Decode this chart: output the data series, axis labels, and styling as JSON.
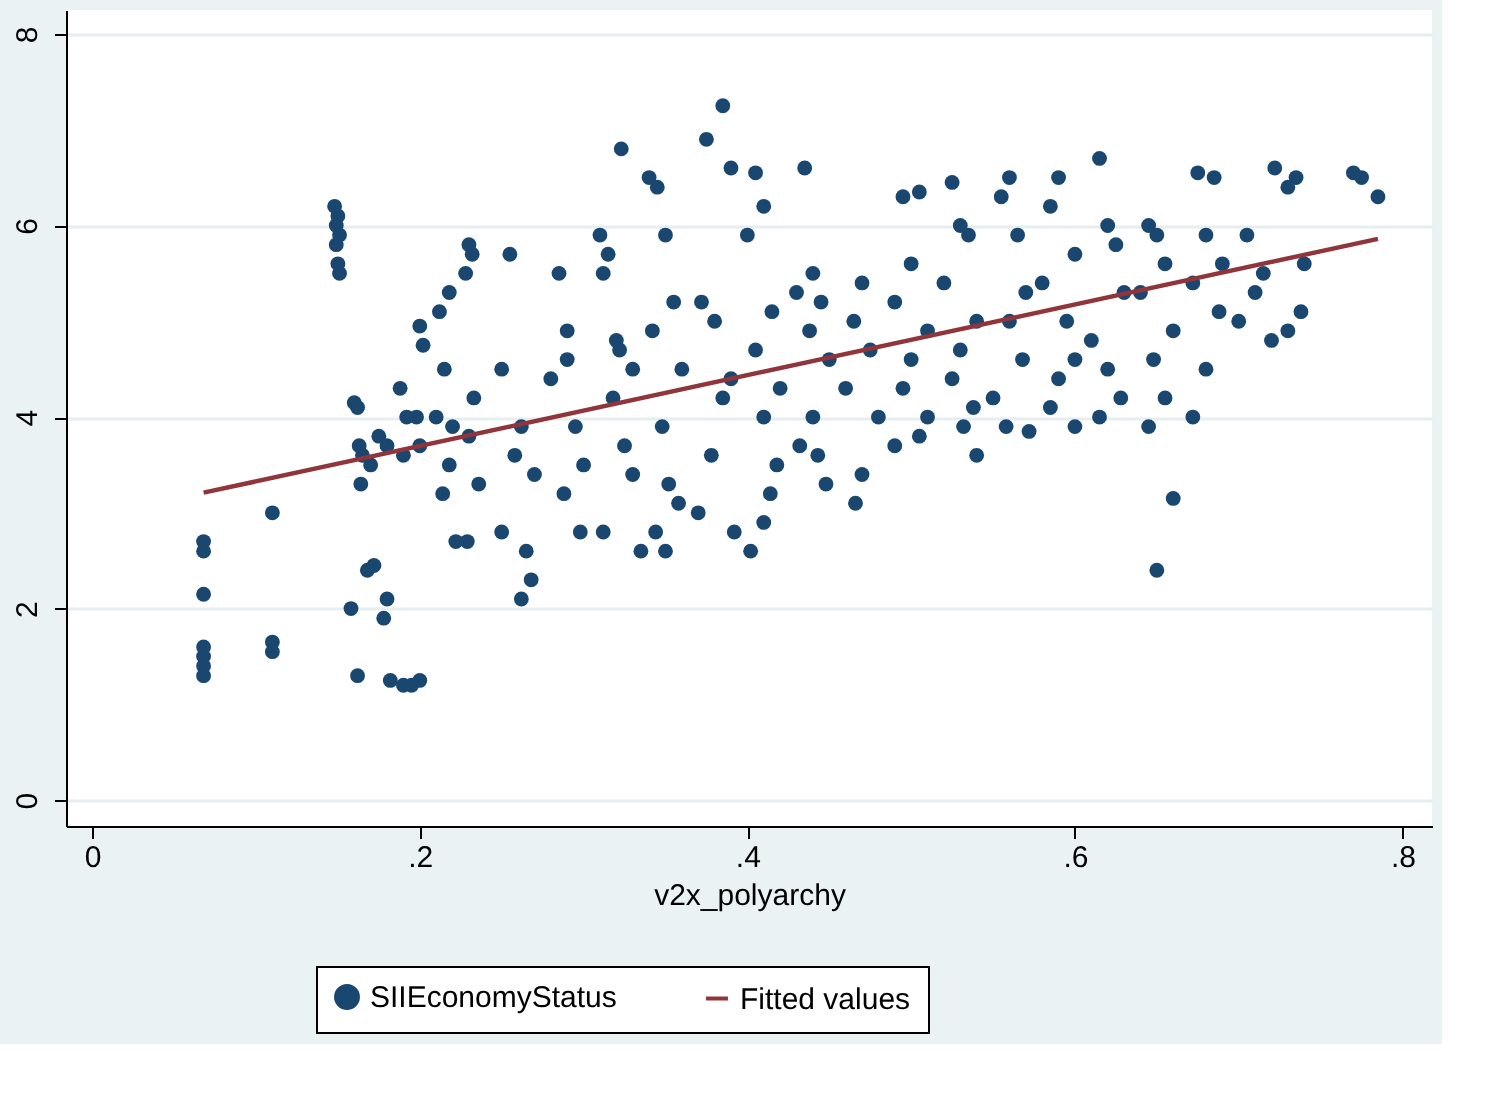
{
  "chart_data": {
    "type": "scatter",
    "xlabel": "v2x_polyarchy",
    "xlim": [
      -0.016,
      0.818
    ],
    "ylim": [
      -0.27,
      8.25
    ],
    "xticks": [
      {
        "value": 0,
        "label": "0"
      },
      {
        "value": 0.2,
        "label": ".2"
      },
      {
        "value": 0.4,
        "label": ".4"
      },
      {
        "value": 0.6,
        "label": ".6"
      },
      {
        "value": 0.8,
        "label": ".8"
      }
    ],
    "yticks": [
      0,
      2,
      4,
      6,
      8
    ],
    "grid": "y",
    "legend": "bottom",
    "series": [
      {
        "name": "SIIEconomyStatus",
        "marker": "circle",
        "color": "#1a476f",
        "x": [
          0.068,
          0.068,
          0.068,
          0.068,
          0.068,
          0.068,
          0.068,
          0.11,
          0.11,
          0.11,
          0.148,
          0.15,
          0.149,
          0.151,
          0.149,
          0.15,
          0.151,
          0.16,
          0.162,
          0.163,
          0.165,
          0.17,
          0.164,
          0.168,
          0.158,
          0.162,
          0.175,
          0.18,
          0.172,
          0.178,
          0.18,
          0.182,
          0.19,
          0.195,
          0.2,
          0.188,
          0.192,
          0.19,
          0.2,
          0.202,
          0.198,
          0.2,
          0.212,
          0.218,
          0.215,
          0.21,
          0.22,
          0.218,
          0.214,
          0.222,
          0.23,
          0.232,
          0.228,
          0.233,
          0.23,
          0.236,
          0.229,
          0.255,
          0.25,
          0.262,
          0.258,
          0.27,
          0.25,
          0.265,
          0.262,
          0.268,
          0.285,
          0.29,
          0.28,
          0.295,
          0.3,
          0.288,
          0.298,
          0.29,
          0.31,
          0.315,
          0.312,
          0.32,
          0.322,
          0.33,
          0.318,
          0.325,
          0.33,
          0.312,
          0.323,
          0.335,
          0.34,
          0.345,
          0.35,
          0.355,
          0.342,
          0.36,
          0.348,
          0.352,
          0.358,
          0.344,
          0.35,
          0.385,
          0.375,
          0.39,
          0.372,
          0.38,
          0.39,
          0.385,
          0.378,
          0.37,
          0.392,
          0.405,
          0.41,
          0.4,
          0.415,
          0.405,
          0.42,
          0.41,
          0.418,
          0.402,
          0.41,
          0.414,
          0.435,
          0.44,
          0.43,
          0.445,
          0.438,
          0.45,
          0.44,
          0.432,
          0.448,
          0.443,
          0.47,
          0.465,
          0.475,
          0.46,
          0.48,
          0.47,
          0.466,
          0.495,
          0.505,
          0.5,
          0.49,
          0.51,
          0.5,
          0.495,
          0.51,
          0.49,
          0.505,
          0.525,
          0.53,
          0.535,
          0.52,
          0.54,
          0.53,
          0.525,
          0.538,
          0.532,
          0.54,
          0.56,
          0.555,
          0.565,
          0.57,
          0.56,
          0.568,
          0.55,
          0.558,
          0.572,
          0.59,
          0.585,
          0.6,
          0.58,
          0.595,
          0.6,
          0.59,
          0.585,
          0.6,
          0.615,
          0.62,
          0.625,
          0.63,
          0.61,
          0.62,
          0.628,
          0.615,
          0.645,
          0.65,
          0.655,
          0.64,
          0.66,
          0.648,
          0.655,
          0.645,
          0.66,
          0.65,
          0.675,
          0.685,
          0.68,
          0.69,
          0.672,
          0.688,
          0.68,
          0.672,
          0.705,
          0.715,
          0.71,
          0.7,
          0.72,
          0.722,
          0.735,
          0.73,
          0.74,
          0.738,
          0.73,
          0.77,
          0.775,
          0.785
        ],
        "values": [
          2.7,
          2.6,
          2.15,
          1.6,
          1.5,
          1.4,
          1.3,
          3.0,
          1.65,
          1.55,
          6.2,
          6.1,
          6.0,
          5.9,
          5.8,
          5.6,
          5.5,
          4.15,
          4.1,
          3.7,
          3.6,
          3.5,
          3.3,
          2.4,
          2.0,
          1.3,
          3.8,
          3.7,
          2.45,
          1.9,
          2.1,
          1.25,
          1.2,
          1.2,
          1.25,
          4.3,
          4.0,
          3.6,
          4.95,
          4.75,
          4.0,
          3.7,
          5.1,
          5.3,
          4.5,
          4.0,
          3.9,
          3.5,
          3.2,
          2.7,
          5.8,
          5.7,
          5.5,
          4.2,
          3.8,
          3.3,
          2.7,
          5.7,
          4.5,
          3.9,
          3.6,
          3.4,
          2.8,
          2.6,
          2.1,
          2.3,
          5.5,
          4.6,
          4.4,
          3.9,
          3.5,
          3.2,
          2.8,
          4.9,
          5.9,
          5.7,
          5.5,
          4.8,
          4.7,
          4.5,
          4.2,
          3.7,
          3.4,
          2.8,
          6.8,
          2.6,
          6.5,
          6.4,
          5.9,
          5.2,
          4.9,
          4.5,
          3.9,
          3.3,
          3.1,
          2.8,
          2.6,
          7.25,
          6.9,
          6.6,
          5.2,
          5.0,
          4.4,
          4.2,
          3.6,
          3.0,
          2.8,
          6.55,
          6.2,
          5.9,
          5.1,
          4.7,
          4.3,
          4.0,
          3.5,
          2.6,
          2.9,
          3.2,
          6.6,
          5.5,
          5.3,
          5.2,
          4.9,
          4.6,
          4.0,
          3.7,
          3.3,
          3.6,
          5.4,
          5.0,
          4.7,
          4.3,
          4.0,
          3.4,
          3.1,
          6.3,
          6.35,
          5.6,
          5.2,
          4.9,
          4.6,
          4.3,
          4.0,
          3.7,
          3.8,
          6.45,
          6.0,
          5.9,
          5.4,
          5.0,
          4.7,
          4.4,
          4.1,
          3.9,
          3.6,
          6.5,
          6.3,
          5.9,
          5.3,
          5.0,
          4.6,
          4.2,
          3.9,
          3.85,
          6.5,
          6.2,
          5.7,
          5.4,
          5.0,
          4.6,
          4.4,
          4.1,
          3.9,
          6.7,
          6.0,
          5.8,
          5.3,
          4.8,
          4.5,
          4.2,
          4.0,
          6.0,
          5.9,
          5.6,
          5.3,
          4.9,
          4.6,
          4.2,
          3.9,
          3.15,
          2.4,
          6.55,
          6.5,
          5.9,
          5.6,
          5.4,
          5.1,
          4.5,
          4.0,
          5.9,
          5.5,
          5.3,
          5.0,
          4.8,
          6.6,
          6.5,
          6.4,
          5.6,
          5.1,
          4.9,
          6.55,
          6.5,
          6.3
        ]
      },
      {
        "name": "Fitted values",
        "type": "line",
        "line_style": "solid",
        "color": "#90353b",
        "x": [
          0.068,
          0.785
        ],
        "values": [
          3.21,
          5.86
        ]
      }
    ]
  }
}
